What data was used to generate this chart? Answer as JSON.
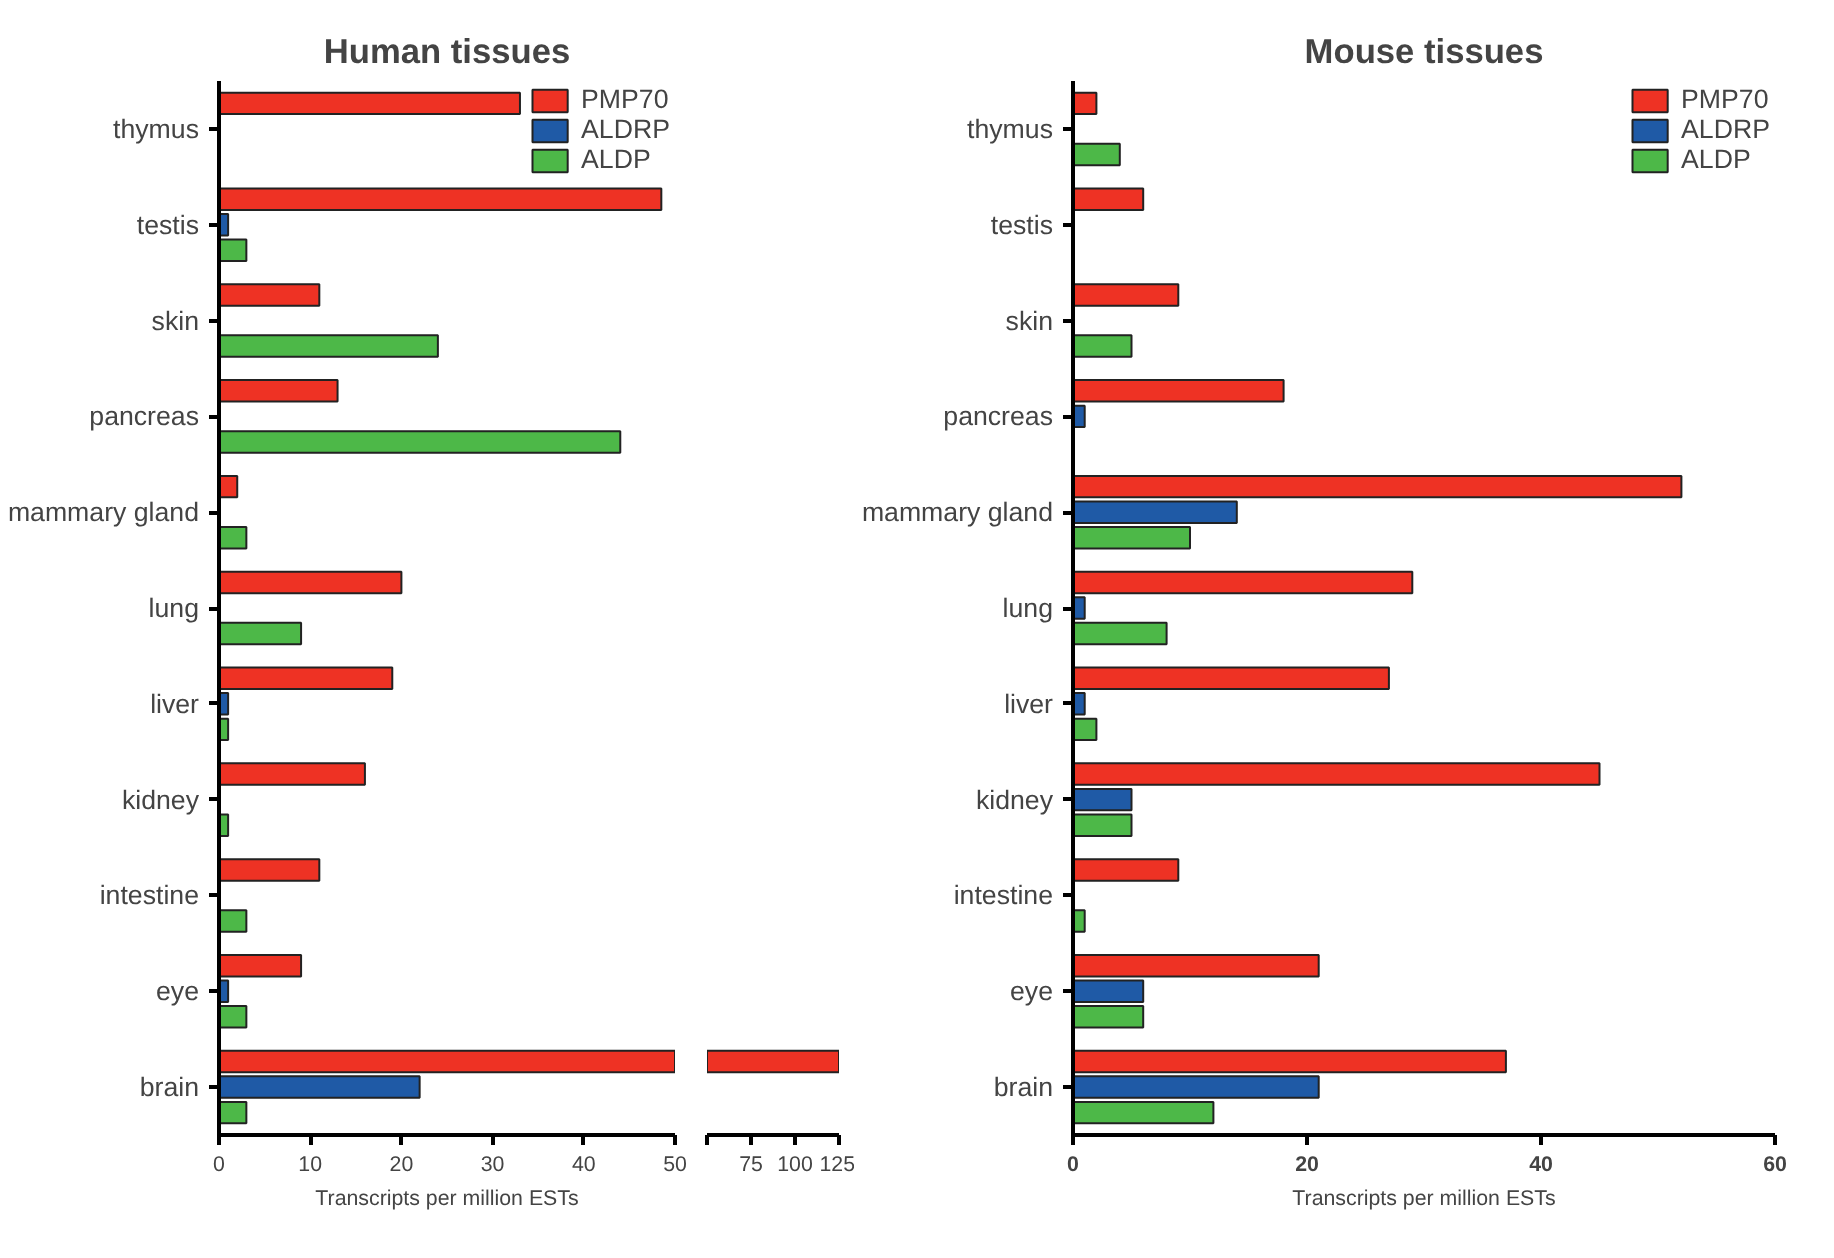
{
  "chart_data": [
    {
      "type": "bar",
      "orientation": "horizontal",
      "title": "Human tissues",
      "xlabel": "Transcripts per million ESTs",
      "categories": [
        "thymus",
        "testis",
        "skin",
        "pancreas",
        "mammary gland",
        "lung",
        "liver",
        "kidney",
        "intestine",
        "eye",
        "brain"
      ],
      "series": [
        {
          "name": "PMP70",
          "color": "#ee3224",
          "values": [
            33,
            48.5,
            11,
            13,
            2,
            20,
            19,
            16,
            11,
            9,
            50
          ]
        },
        {
          "name": "ALDRP",
          "color": "#1f5aa6",
          "values": [
            0,
            1,
            0,
            0,
            0,
            0,
            1,
            0,
            0,
            1,
            22
          ]
        },
        {
          "name": "ALDP",
          "color": "#4db848",
          "values": [
            0,
            3,
            24,
            44,
            3,
            9,
            1,
            1,
            3,
            3,
            3
          ]
        }
      ],
      "xlim": [
        0,
        50
      ],
      "xticks": [
        0,
        10,
        20,
        30,
        40,
        50
      ],
      "grid": false,
      "legend": "top right"
    },
    {
      "type": "bar",
      "orientation": "horizontal",
      "tick_labels": "x",
      "categories": [
        null,
        null,
        null,
        null,
        null,
        null,
        null,
        null,
        null,
        null,
        null
      ],
      "series": [
        {
          "color": "#ee3224",
          "values": [
            null,
            null,
            null,
            null,
            null,
            null,
            null,
            null,
            null,
            null,
            75
          ],
          "base": [
            null,
            null,
            null,
            null,
            null,
            null,
            null,
            null,
            null,
            null,
            50
          ]
        }
      ],
      "xlim": [
        50,
        125
      ],
      "xticks": [
        {
          "value": 50,
          "label": null
        },
        75,
        100,
        125
      ],
      "grid": false
    },
    {
      "type": "bar",
      "orientation": "horizontal",
      "title": "Mouse tissues",
      "xlabel": "Transcripts per million ESTs",
      "categories": [
        "thymus",
        "testis",
        "skin",
        "pancreas",
        "mammary gland",
        "lung",
        "liver",
        "kidney",
        "intestine",
        "eye",
        "brain"
      ],
      "series": [
        {
          "name": "PMP70",
          "color": "#ee3224",
          "values": [
            2,
            6,
            9,
            18,
            52,
            29,
            27,
            45,
            9,
            21,
            37
          ]
        },
        {
          "name": "ALDRP",
          "color": "#1f5aa6",
          "values": [
            0,
            0,
            0,
            1,
            14,
            1,
            1,
            5,
            0,
            6,
            21
          ]
        },
        {
          "name": "ALDP",
          "color": "#4db848",
          "values": [
            4,
            0,
            5,
            0,
            10,
            8,
            2,
            5,
            1,
            6,
            12
          ]
        }
      ],
      "xlim": [
        0,
        60
      ],
      "xticks": [
        0,
        20,
        40,
        60
      ],
      "grid": false,
      "legend": "top right"
    }
  ]
}
